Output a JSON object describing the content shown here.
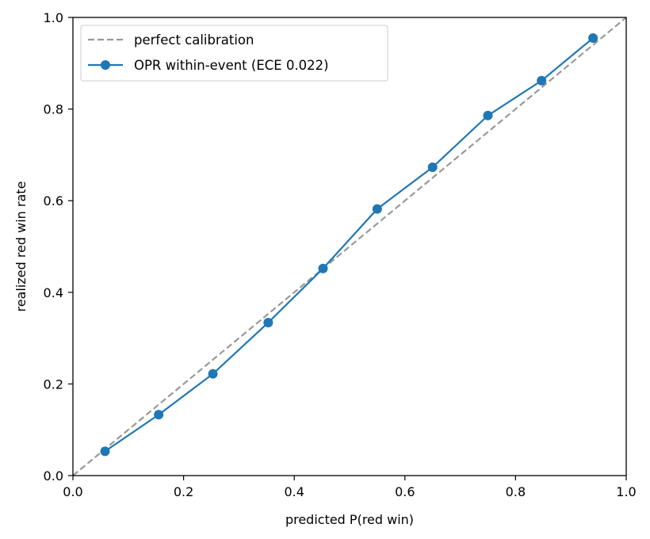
{
  "chart_data": {
    "type": "line",
    "title": "",
    "xlabel": "predicted P(red win)",
    "ylabel": "realized red win rate",
    "xlim": [
      0.0,
      1.0
    ],
    "ylim": [
      0.0,
      1.0
    ],
    "xticks": [
      "0.0",
      "0.2",
      "0.4",
      "0.6",
      "0.8",
      "1.0"
    ],
    "yticks": [
      "0.0",
      "0.2",
      "0.4",
      "0.6",
      "0.8",
      "1.0"
    ],
    "grid": false,
    "legend_position": "top-left",
    "series": [
      {
        "name": "perfect calibration",
        "style": "dashed",
        "color": "#999999",
        "x": [
          0.0,
          1.0
        ],
        "y": [
          0.0,
          1.0
        ]
      },
      {
        "name": "OPR within-event (ECE 0.022)",
        "style": "solid-markers",
        "color": "#1f77b4",
        "x": [
          0.058,
          0.155,
          0.253,
          0.353,
          0.452,
          0.55,
          0.65,
          0.75,
          0.847,
          0.94
        ],
        "y": [
          0.053,
          0.133,
          0.222,
          0.334,
          0.452,
          0.582,
          0.673,
          0.786,
          0.862,
          0.955
        ]
      }
    ]
  }
}
